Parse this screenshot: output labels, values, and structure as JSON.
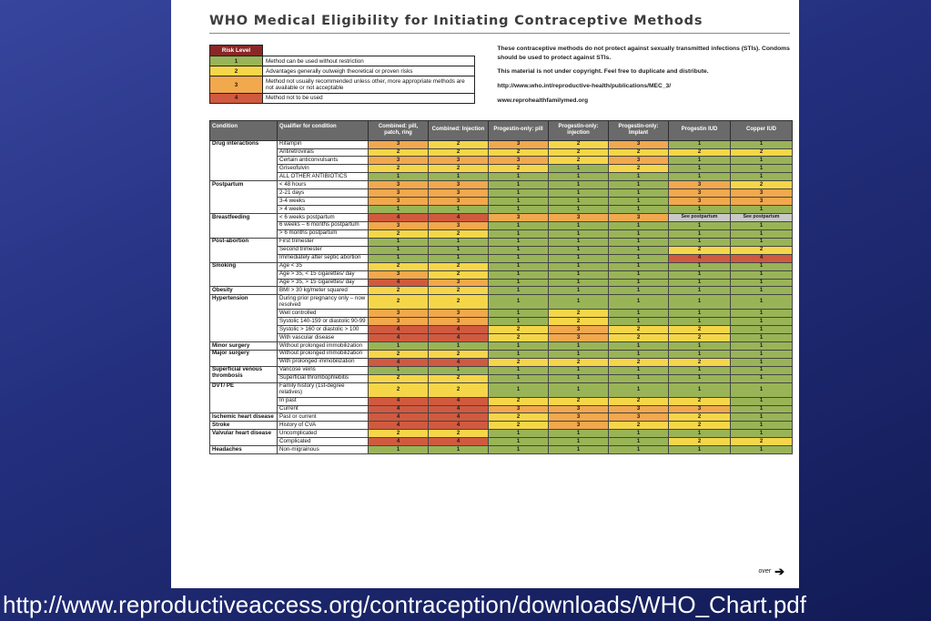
{
  "slide": {
    "footer_url": "http://www.reproductiveaccess.org/contraception/downloads/WHO_Chart.pdf"
  },
  "chart": {
    "title": "WHO Medical Eligibility for Initiating Contraceptive Methods",
    "legend": {
      "header": "Risk Level",
      "rows": [
        {
          "level": "1",
          "color": "#99b457",
          "text": "Method can be used without restriction"
        },
        {
          "level": "2",
          "color": "#f6d649",
          "text": "Advantages generally outweigh theoretical or proven risks"
        },
        {
          "level": "3",
          "color": "#f2a84d",
          "text": "Method not usually recommended unless other, more appropriate methods are not available or not acceptable"
        },
        {
          "level": "4",
          "color": "#d05a40",
          "text": "Method not to be used"
        }
      ]
    },
    "notes": [
      "These contraceptive methods do not protect against sexually transmitted infections (STIs). Condoms should be used to protect against STIs.",
      "This material is not under copyright. Feel free to duplicate and distribute.",
      "http://www.who.int/reproductive-health/publications/MEC_3/",
      "www.reprohealthfamilymed.org"
    ],
    "over_label": "over"
  },
  "chart_data": {
    "type": "table",
    "columns": [
      "Condition",
      "Qualifier for condition",
      "Combined: pill, patch, ring",
      "Combined: Injection",
      "Progestin-only: pill",
      "Progestin-only: injection",
      "Progestin-only: Implant",
      "Progestin IUD",
      "Copper IUD"
    ],
    "risk_colors": {
      "1": "#99b457",
      "2": "#f6d649",
      "3": "#f2a84d",
      "4": "#d05a40",
      "see": "#c9c9c9"
    },
    "groups": [
      {
        "condition": "Drug interactions",
        "rows": [
          {
            "qualifier": "Rifampin",
            "values": [
              "3",
              "2",
              "3",
              "2",
              "3",
              "1",
              "1"
            ]
          },
          {
            "qualifier": "Antiretrovirals",
            "values": [
              "2",
              "2",
              "2",
              "2",
              "2",
              "2",
              "2"
            ]
          },
          {
            "qualifier": "Certain anticonvulsants",
            "values": [
              "3",
              "3",
              "3",
              "2",
              "3",
              "1",
              "1"
            ]
          },
          {
            "qualifier": "Griseofulvin",
            "values": [
              "2",
              "2",
              "2",
              "1",
              "2",
              "1",
              "1"
            ]
          },
          {
            "qualifier": "ALL OTHER ANTIBIOTICS",
            "values": [
              "1",
              "1",
              "1",
              "1",
              "1",
              "1",
              "1"
            ]
          }
        ]
      },
      {
        "condition": "Postpartum",
        "rows": [
          {
            "qualifier": "< 48 hours",
            "values": [
              "3",
              "3",
              "1",
              "1",
              "1",
              "3",
              "2"
            ]
          },
          {
            "qualifier": "2-21 days",
            "values": [
              "3",
              "3",
              "1",
              "1",
              "1",
              "3",
              "3"
            ]
          },
          {
            "qualifier": "3-4 weeks",
            "values": [
              "3",
              "3",
              "1",
              "1",
              "1",
              "3",
              "3"
            ]
          },
          {
            "qualifier": "> 4 weeks",
            "values": [
              "1",
              "1",
              "1",
              "1",
              "1",
              "1",
              "1"
            ]
          }
        ]
      },
      {
        "condition": "Breastfeeding",
        "rows": [
          {
            "qualifier": "< 6 weeks postpartum",
            "values": [
              "4",
              "4",
              "3",
              "3",
              "3",
              "See postpartum",
              "See postpartum"
            ]
          },
          {
            "qualifier": "6 weeks – 6 months postpartum",
            "values": [
              "3",
              "3",
              "1",
              "1",
              "1",
              "1",
              "1"
            ]
          },
          {
            "qualifier": "> 6 months postpartum",
            "values": [
              "2",
              "2",
              "1",
              "1",
              "1",
              "1",
              "1"
            ]
          }
        ]
      },
      {
        "condition": "Post-abortion",
        "rows": [
          {
            "qualifier": "First trimester",
            "values": [
              "1",
              "1",
              "1",
              "1",
              "1",
              "1",
              "1"
            ]
          },
          {
            "qualifier": "Second trimester",
            "values": [
              "1",
              "1",
              "1",
              "1",
              "1",
              "2",
              "2"
            ]
          },
          {
            "qualifier": "Immediately after septic abortion",
            "values": [
              "1",
              "1",
              "1",
              "1",
              "1",
              "4",
              "4"
            ]
          }
        ]
      },
      {
        "condition": "Smoking",
        "rows": [
          {
            "qualifier": "Age < 35",
            "values": [
              "2",
              "2",
              "1",
              "1",
              "1",
              "1",
              "1"
            ]
          },
          {
            "qualifier": "Age > 35, < 15 cigarettes/ day",
            "values": [
              "3",
              "2",
              "1",
              "1",
              "1",
              "1",
              "1"
            ]
          },
          {
            "qualifier": "Age > 35, > 15 cigarettes/ day",
            "values": [
              "4",
              "3",
              "1",
              "1",
              "1",
              "1",
              "1"
            ]
          }
        ]
      },
      {
        "condition": "Obesity",
        "rows": [
          {
            "qualifier": "BMI > 30 kg/meter squared",
            "values": [
              "2",
              "2",
              "1",
              "1",
              "1",
              "1",
              "1"
            ]
          }
        ]
      },
      {
        "condition": "Hypertension",
        "rows": [
          {
            "qualifier": "During prior pregnancy only – now resolved",
            "values": [
              "2",
              "2",
              "1",
              "1",
              "1",
              "1",
              "1"
            ]
          },
          {
            "qualifier": "Well controlled",
            "values": [
              "3",
              "3",
              "1",
              "2",
              "1",
              "1",
              "1"
            ]
          },
          {
            "qualifier": "Systolic 140-159 or diastolic 90-99",
            "values": [
              "3",
              "3",
              "1",
              "2",
              "1",
              "1",
              "1"
            ]
          },
          {
            "qualifier": "Systolic > 160 or diastolic > 100",
            "values": [
              "4",
              "4",
              "2",
              "3",
              "2",
              "2",
              "1"
            ]
          },
          {
            "qualifier": "With vascular disease",
            "values": [
              "4",
              "4",
              "2",
              "3",
              "2",
              "2",
              "1"
            ]
          }
        ]
      },
      {
        "condition": "Minor surgery",
        "rows": [
          {
            "qualifier": "Without prolonged immobilization",
            "values": [
              "1",
              "1",
              "1",
              "1",
              "1",
              "1",
              "1"
            ]
          }
        ]
      },
      {
        "condition": "Major surgery",
        "rows": [
          {
            "qualifier": "Without prolonged immobilization",
            "values": [
              "2",
              "2",
              "1",
              "1",
              "1",
              "1",
              "1"
            ]
          },
          {
            "qualifier": "With prolonged immobilization",
            "values": [
              "4",
              "4",
              "2",
              "2",
              "2",
              "2",
              "1"
            ]
          }
        ]
      },
      {
        "condition": "Superficial venous thrombosis",
        "rows": [
          {
            "qualifier": "Varicose veins",
            "values": [
              "1",
              "1",
              "1",
              "1",
              "1",
              "1",
              "1"
            ]
          },
          {
            "qualifier": "Superficial thrombophlebitis",
            "values": [
              "2",
              "2",
              "1",
              "1",
              "1",
              "1",
              "1"
            ]
          }
        ]
      },
      {
        "condition": "DVT/ PE",
        "rows": [
          {
            "qualifier": "Family history (1st-degree relatives)",
            "values": [
              "2",
              "2",
              "1",
              "1",
              "1",
              "1",
              "1"
            ]
          },
          {
            "qualifier": "In past",
            "values": [
              "4",
              "4",
              "2",
              "2",
              "2",
              "2",
              "1"
            ]
          },
          {
            "qualifier": "Current",
            "values": [
              "4",
              "4",
              "3",
              "3",
              "3",
              "3",
              "1"
            ]
          }
        ]
      },
      {
        "condition": "Ischemic heart disease",
        "rows": [
          {
            "qualifier": "Past or current",
            "values": [
              "4",
              "4",
              "2",
              "3",
              "3",
              "2",
              "1"
            ]
          }
        ]
      },
      {
        "condition": "Stroke",
        "rows": [
          {
            "qualifier": "History of CVA",
            "values": [
              "4",
              "4",
              "2",
              "3",
              "2",
              "2",
              "1"
            ]
          }
        ]
      },
      {
        "condition": "Valvular heart disease",
        "rows": [
          {
            "qualifier": "Uncomplicated",
            "values": [
              "2",
              "2",
              "1",
              "1",
              "1",
              "1",
              "1"
            ]
          },
          {
            "qualifier": "Complicated",
            "values": [
              "4",
              "4",
              "1",
              "1",
              "1",
              "2",
              "2"
            ]
          }
        ]
      },
      {
        "condition": "Headaches",
        "rows": [
          {
            "qualifier": "Non-migrainous",
            "values": [
              "1",
              "1",
              "1",
              "1",
              "1",
              "1",
              "1"
            ]
          }
        ]
      }
    ]
  }
}
